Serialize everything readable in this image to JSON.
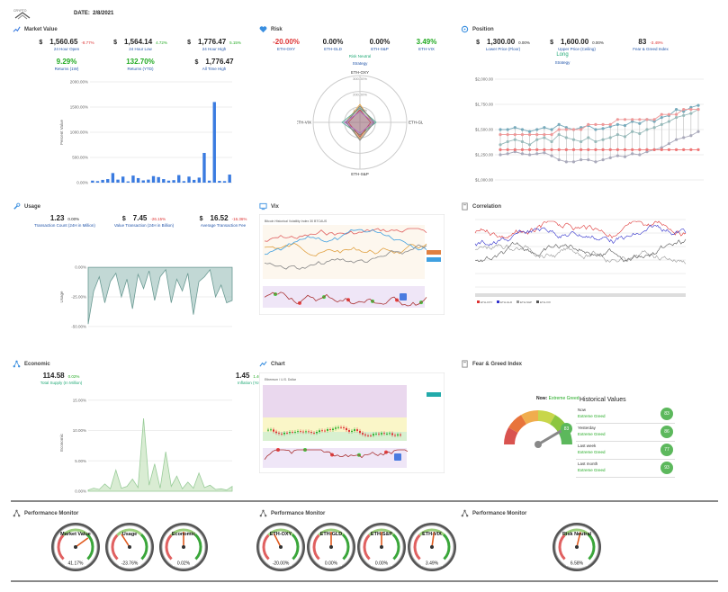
{
  "header": {
    "logo_text": "CRYPTO",
    "date_label": "DATE:",
    "date_value": "2/8/2021"
  },
  "market_value": {
    "title": "Market Value",
    "metrics": [
      {
        "cur": "$",
        "value": "1,560.65",
        "change": "-8.77%",
        "label": "24 Hour Open",
        "color": "#d33"
      },
      {
        "cur": "$",
        "value": "1,564.14",
        "change": "4.72%",
        "label": "24 Hour Low",
        "color": "#2a2"
      },
      {
        "cur": "$",
        "value": "1,776.47",
        "change": "5.15%",
        "label": "24 Hour High",
        "color": "#2a2"
      },
      {
        "cur": "",
        "value": "9.29%",
        "change": "",
        "label": "Returns (1W)",
        "color": "#2a2"
      },
      {
        "cur": "",
        "value": "132.70%",
        "change": "",
        "label": "Returns (YTD)",
        "color": "#2a2"
      },
      {
        "cur": "$",
        "value": "1,776.47",
        "change": "",
        "label": "All Time High",
        "color": "#222"
      }
    ],
    "chart": {
      "ylabel": "Percent Value",
      "yticks": [
        "2000.00%",
        "1500.00%",
        "1000.00%",
        "500.00%",
        "0.00%"
      ],
      "ylim": [
        0,
        2000
      ],
      "values": [
        40,
        30,
        55,
        70,
        190,
        60,
        120,
        25,
        140,
        90,
        45,
        60,
        130,
        110,
        70,
        40,
        50,
        150,
        30,
        120,
        55,
        100,
        590,
        40,
        1600,
        35,
        30,
        160
      ]
    }
  },
  "risk": {
    "title": "Risk",
    "metrics": [
      {
        "value": "-20.00%",
        "label": "ETH-OXY",
        "color": "#d33"
      },
      {
        "value": "0.00%",
        "label": "ETH-GLD",
        "color": "#222"
      },
      {
        "value": "0.00%",
        "label": "ETH-S&P",
        "color": "#222"
      },
      {
        "value": "3.49%",
        "label": "ETH-VIX",
        "color": "#2a2"
      }
    ],
    "toggle_label": "Risk Neutral",
    "strategy_label": "Strategy",
    "radar": {
      "axes": [
        "ETH-OXY",
        "ETH-GLD",
        "ETH-S&P",
        "ETH-VIX"
      ],
      "ticks": [
        "300.00%",
        "200.00%",
        "100.00%"
      ]
    }
  },
  "position": {
    "title": "Position",
    "metrics": [
      {
        "cur": "$",
        "value": "1,300.00",
        "change": "0.00%",
        "label": "Lower Price (Floor)"
      },
      {
        "cur": "$",
        "value": "1,600.00",
        "change": "0.00%",
        "label": "Upper Price (Ceiling)"
      },
      {
        "cur": "",
        "value": "83",
        "change": "-3.49%",
        "label": "Fear & Greed Index"
      }
    ],
    "long_label": "Long",
    "strategy_label": "Strategy",
    "chart": {
      "yticks": [
        "$2,000.00",
        "$1,750.00",
        "$1,500.00",
        "$1,250.00",
        "$1,000.00"
      ],
      "ylim": [
        1000,
        2000
      ],
      "upper": [
        1500,
        1500,
        1520,
        1500,
        1480,
        1500,
        1520,
        1500,
        1550,
        1520,
        1500,
        1520,
        1540,
        1500,
        1510,
        1530,
        1550,
        1540,
        1580,
        1560,
        1600,
        1580,
        1620,
        1640,
        1700,
        1680,
        1720,
        1740
      ],
      "mid": [
        1350,
        1380,
        1400,
        1380,
        1350,
        1400,
        1420,
        1380,
        1450,
        1420,
        1400,
        1380,
        1420,
        1380,
        1400,
        1420,
        1450,
        1430,
        1480,
        1460,
        1500,
        1520,
        1550,
        1580,
        1620,
        1640,
        1660,
        1700
      ],
      "lower": [
        1250,
        1260,
        1280,
        1260,
        1250,
        1260,
        1270,
        1240,
        1200,
        1180,
        1180,
        1200,
        1200,
        1180,
        1200,
        1220,
        1240,
        1230,
        1260,
        1250,
        1280,
        1300,
        1320,
        1360,
        1400,
        1420,
        1440,
        1480
      ],
      "floor": [
        1300,
        1300,
        1300,
        1300,
        1300,
        1300,
        1300,
        1300,
        1300,
        1300,
        1300,
        1300,
        1300,
        1300,
        1300,
        1300,
        1300,
        1300,
        1300,
        1300,
        1300,
        1300,
        1300,
        1300,
        1300,
        1300,
        1300,
        1300
      ],
      "ceiling": [
        1450,
        1450,
        1450,
        1450,
        1450,
        1450,
        1450,
        1450,
        1500,
        1500,
        1500,
        1500,
        1550,
        1550,
        1550,
        1550,
        1600,
        1600,
        1600,
        1600,
        1600,
        1600,
        1650,
        1650,
        1650,
        1700,
        1700,
        1700
      ]
    }
  },
  "usage": {
    "title": "Usage",
    "metrics": [
      {
        "cur": "",
        "value": "1.23",
        "change": "0.00%",
        "label": "Transaction Count (24H in Million)",
        "color": "#222"
      },
      {
        "cur": "$",
        "value": "7.45",
        "change": "-26.15%",
        "label": "Value Transaction (24H in Billion)",
        "color": "#d33"
      },
      {
        "cur": "$",
        "value": "16.52",
        "change": "-16.36%",
        "label": "Average Transaction Fee",
        "color": "#d33"
      }
    ],
    "chart": {
      "ylabel": "Usage",
      "yticks": [
        "0.00%",
        "-25.00%",
        "-50.00%"
      ],
      "ylim": [
        -60,
        10
      ],
      "values": [
        -48,
        -20,
        -8,
        -30,
        -12,
        -5,
        -25,
        -10,
        -35,
        -6,
        -18,
        -3,
        -28,
        -8,
        -2,
        -30,
        -10,
        -20,
        -5,
        -40,
        -12,
        -8,
        -2,
        -25,
        -15,
        -30,
        -28
      ]
    }
  },
  "vix": {
    "title": "Vix",
    "chart_title": "Bitcoin Historical Volatility Index 30 BTCAUS"
  },
  "correlation": {
    "title": "Correlation",
    "legend": [
      "ETH-OXY",
      "ETH-GLD",
      "ETH-S&P",
      "ETH-VIX"
    ]
  },
  "economic": {
    "title": "Economic",
    "metrics": [
      {
        "value": "114.58",
        "change": "0.02%",
        "label": "Total Supply (In Million)"
      },
      {
        "value": "1.45",
        "change": "1.40%",
        "label": "Inflation (YoY)"
      }
    ],
    "chart": {
      "ylabel": "Economic",
      "yticks": [
        "15.00%",
        "10.00%",
        "5.00%",
        "0.00%"
      ],
      "ylim": [
        0,
        16
      ],
      "values": [
        0.2,
        0.5,
        0.3,
        1.2,
        0.4,
        3.5,
        0.5,
        0.8,
        2.0,
        0.6,
        12.0,
        1.0,
        4.5,
        0.5,
        6.5,
        0.8,
        2.5,
        0.4,
        1.5,
        0.5,
        3.0,
        0.6,
        1.0,
        0.3,
        0.4,
        0.2,
        0.8
      ]
    }
  },
  "chart_panel": {
    "title": "Chart",
    "chart_title": "Ethereum / U.S. Dollar"
  },
  "fear_greed": {
    "title": "Fear & Greed Index",
    "now_label": "Now:",
    "now_value": "Extreme Greed",
    "gauge_value": "83",
    "history_title": "Historical Values",
    "history": [
      {
        "period": "Now",
        "label": "Extreme Greed",
        "value": "83"
      },
      {
        "period": "Yesterday",
        "label": "Extreme Greed",
        "value": "86"
      },
      {
        "period": "Last week",
        "label": "Extreme Greed",
        "value": "77"
      },
      {
        "period": "Last month",
        "label": "Extreme Greed",
        "value": "93"
      }
    ]
  },
  "monitors": [
    {
      "title": "Performance Monitor",
      "gauges": [
        {
          "name": "Market Value",
          "value": "41.17%",
          "needle": 0.7
        },
        {
          "name": "Usage",
          "value": "-23.76%",
          "needle": 0.38
        },
        {
          "name": "Economic",
          "value": "0.02%",
          "needle": 0.5
        }
      ]
    },
    {
      "title": "Performance Monitor",
      "gauges": [
        {
          "name": "ETH-OXY",
          "value": "-20.00%",
          "needle": 0.4
        },
        {
          "name": "ETH-GLD",
          "value": "0.00%",
          "needle": 0.5
        },
        {
          "name": "ETH-S&P",
          "value": "0.00%",
          "needle": 0.5
        },
        {
          "name": "ETH-VIX",
          "value": "3.49%",
          "needle": 0.53
        }
      ]
    },
    {
      "title": "Performance Monitor",
      "gauges": [
        {
          "name": "Risk Neutral",
          "value": "6.58%",
          "needle": 0.55
        }
      ]
    }
  ],
  "colors": {
    "accent_blue": "#3a7be0",
    "teal_area": "#8fb8b2",
    "green_area": "#bfe0b5",
    "red": "#d33",
    "green": "#2a2"
  }
}
